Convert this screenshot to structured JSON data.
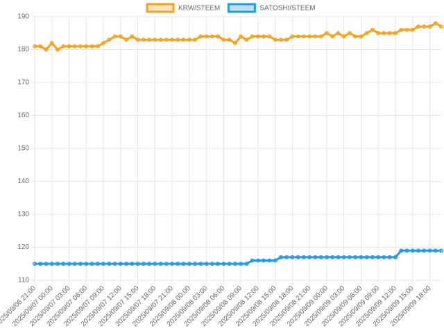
{
  "chart_data": {
    "type": "line",
    "categories": [
      "2025/09/06 21:00",
      null,
      null,
      "2025/09/07 00:00",
      null,
      null,
      "2025/09/07 03:00",
      null,
      null,
      "2025/09/07 06:00",
      null,
      null,
      "2025/09/07 09:00",
      null,
      null,
      "2025/09/07 12:00",
      null,
      null,
      "2025/09/07 15:00",
      null,
      null,
      "2025/09/07 18:00",
      null,
      null,
      "2025/09/07 21:00",
      null,
      null,
      "2025/09/08 00:00",
      null,
      null,
      "2025/09/08 03:00",
      null,
      null,
      "2025/09/08 06:00",
      null,
      null,
      "2025/09/08 09:00",
      null,
      null,
      "2025/09/08 12:00",
      null,
      null,
      "2025/09/08 15:00",
      null,
      null,
      "2025/09/08 18:00",
      null,
      null,
      "2025/09/08 21:00",
      null,
      null,
      "2025/09/09 00:00",
      null,
      null,
      "2025/09/09 03:00",
      null,
      null,
      "2025/09/09 06:00",
      null,
      null,
      "2025/09/09 09:00",
      null,
      null,
      "2025/09/09 12:00",
      null,
      null,
      "2025/09/09 15:00",
      null,
      null,
      "2025/09/09 18:00",
      null,
      null
    ],
    "series": [
      {
        "name": "KRW/STEEM",
        "color": "#f5a31a",
        "values": [
          181,
          181,
          180,
          182,
          180,
          181,
          181,
          181,
          181,
          181,
          181,
          181,
          182,
          183,
          184,
          184,
          183,
          184,
          183,
          183,
          183,
          183,
          183,
          183,
          183,
          183,
          183,
          183,
          183,
          184,
          184,
          184,
          184,
          183,
          183,
          182,
          184,
          183,
          184,
          184,
          184,
          184,
          183,
          183,
          183,
          184,
          184,
          184,
          184,
          184,
          184,
          185,
          184,
          185,
          184,
          185,
          184,
          184,
          185,
          186,
          185,
          185,
          185,
          185,
          186,
          186,
          186,
          187,
          187,
          187,
          188,
          187
        ]
      },
      {
        "name": "SATOSHI/STEEM",
        "color": "#1e9be9",
        "values": [
          115,
          115,
          115,
          115,
          115,
          115,
          115,
          115,
          115,
          115,
          115,
          115,
          115,
          115,
          115,
          115,
          115,
          115,
          115,
          115,
          115,
          115,
          115,
          115,
          115,
          115,
          115,
          115,
          115,
          115,
          115,
          115,
          115,
          115,
          115,
          115,
          115,
          115,
          116,
          116,
          116,
          116,
          116,
          117,
          117,
          117,
          117,
          117,
          117,
          117,
          117,
          117,
          117,
          117,
          117,
          117,
          117,
          117,
          117,
          117,
          117,
          117,
          117,
          117,
          119,
          119,
          119,
          119,
          119,
          119,
          119,
          119
        ]
      }
    ],
    "ylim": [
      110,
      190
    ],
    "yticks": [
      110,
      120,
      130,
      140,
      150,
      160,
      170,
      180,
      190
    ],
    "grid": true
  }
}
